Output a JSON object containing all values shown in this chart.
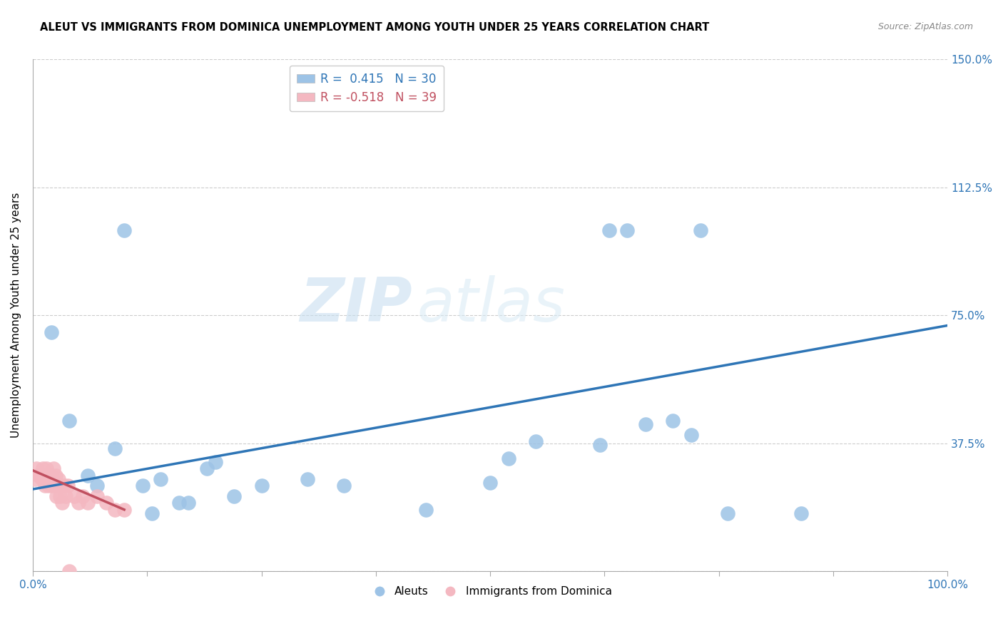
{
  "title": "ALEUT VS IMMIGRANTS FROM DOMINICA UNEMPLOYMENT AMONG YOUTH UNDER 25 YEARS CORRELATION CHART",
  "source": "Source: ZipAtlas.com",
  "xlabel": "",
  "ylabel": "Unemployment Among Youth under 25 years",
  "xlim": [
    0.0,
    1.0
  ],
  "ylim": [
    0.0,
    1.5
  ],
  "xticks": [
    0.0,
    0.125,
    0.25,
    0.375,
    0.5,
    0.625,
    0.75,
    0.875,
    1.0
  ],
  "xticklabels": [
    "0.0%",
    "",
    "",
    "",
    "",
    "",
    "",
    "",
    "100.0%"
  ],
  "ytick_positions": [
    0.0,
    0.375,
    0.75,
    1.125,
    1.5
  ],
  "yticklabels_right": [
    "",
    "37.5%",
    "75.0%",
    "112.5%",
    "150.0%"
  ],
  "legend1_r": "0.415",
  "legend1_n": "30",
  "legend2_r": "-0.518",
  "legend2_n": "39",
  "blue_color": "#9DC3E6",
  "pink_color": "#F4B8C1",
  "line_color": "#2E75B6",
  "pink_line_color": "#C05060",
  "watermark_zip": "ZIP",
  "watermark_atlas": "atlas",
  "aleuts_x": [
    0.02,
    0.04,
    0.06,
    0.07,
    0.09,
    0.1,
    0.12,
    0.13,
    0.14,
    0.16,
    0.17,
    0.19,
    0.2,
    0.22,
    0.25,
    0.3,
    0.34,
    0.43,
    0.5,
    0.52,
    0.55,
    0.62,
    0.63,
    0.65,
    0.67,
    0.7,
    0.72,
    0.73,
    0.76,
    0.84
  ],
  "aleuts_y": [
    0.7,
    0.44,
    0.28,
    0.25,
    0.36,
    1.0,
    0.25,
    0.17,
    0.27,
    0.2,
    0.2,
    0.3,
    0.32,
    0.22,
    0.25,
    0.27,
    0.25,
    0.18,
    0.26,
    0.33,
    0.38,
    0.37,
    1.0,
    1.0,
    0.43,
    0.44,
    0.4,
    1.0,
    0.17,
    0.17
  ],
  "dominica_x": [
    0.002,
    0.004,
    0.006,
    0.007,
    0.008,
    0.01,
    0.011,
    0.012,
    0.013,
    0.014,
    0.015,
    0.016,
    0.017,
    0.018,
    0.019,
    0.02,
    0.021,
    0.022,
    0.023,
    0.024,
    0.025,
    0.026,
    0.027,
    0.028,
    0.029,
    0.03,
    0.032,
    0.034,
    0.036,
    0.038,
    0.04,
    0.045,
    0.05,
    0.055,
    0.06,
    0.07,
    0.08,
    0.09,
    0.1
  ],
  "dominica_y": [
    0.27,
    0.3,
    0.28,
    0.28,
    0.28,
    0.27,
    0.3,
    0.28,
    0.25,
    0.28,
    0.3,
    0.27,
    0.25,
    0.28,
    0.27,
    0.28,
    0.25,
    0.27,
    0.3,
    0.25,
    0.28,
    0.22,
    0.25,
    0.27,
    0.25,
    0.22,
    0.2,
    0.25,
    0.22,
    0.25,
    0.0,
    0.22,
    0.2,
    0.22,
    0.2,
    0.22,
    0.2,
    0.18,
    0.18
  ],
  "aleuts_line_x0": 0.0,
  "aleuts_line_y0": 0.24,
  "aleuts_line_x1": 1.0,
  "aleuts_line_y1": 0.72,
  "dominica_line_x0": 0.0,
  "dominica_line_y0": 0.295,
  "dominica_line_x1": 0.1,
  "dominica_line_y1": 0.18,
  "grid_color": "#CCCCCC"
}
